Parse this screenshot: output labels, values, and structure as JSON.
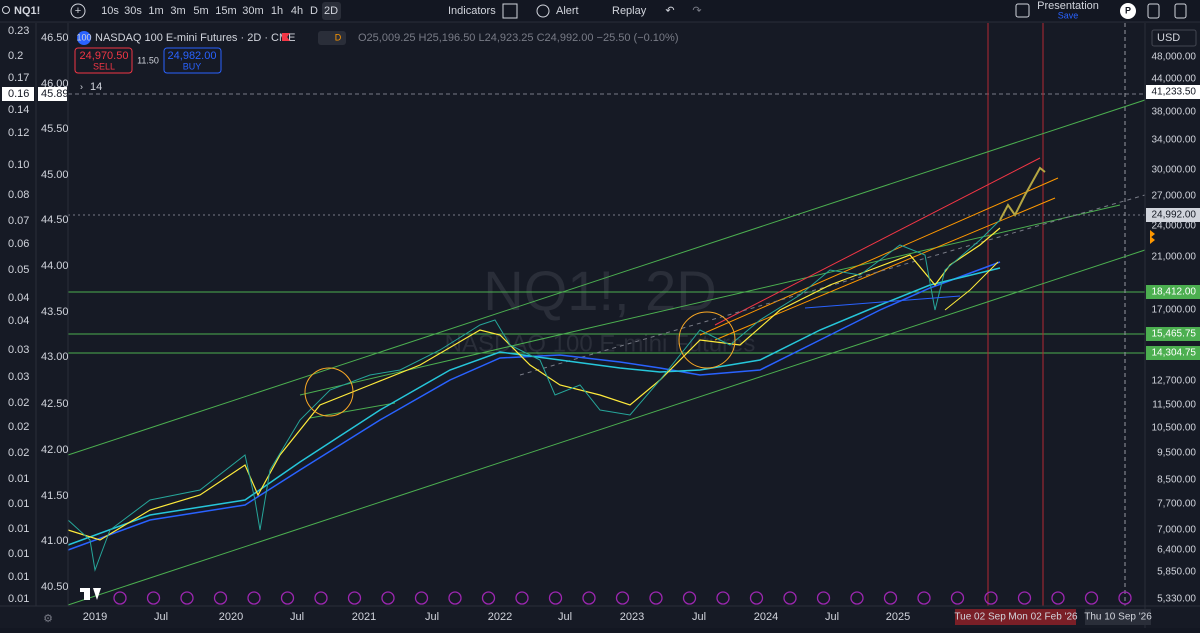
{
  "toolbar": {
    "symbol": "NQ1!",
    "intervals": [
      "10s",
      "30s",
      "1m",
      "3m",
      "5m",
      "15m",
      "30m",
      "1h",
      "4h",
      "D",
      "2D"
    ],
    "indicators": "Indicators",
    "alert": "Alert",
    "replay": "Replay",
    "presentation": "Presentation",
    "save": "Save",
    "avatar": "P"
  },
  "legend": {
    "logo": "100",
    "title": "NASDAQ 100 E-mini Futures · 2D · CME",
    "badge": "D",
    "ohlc": "O25,009.25 H25,196.50 L24,923.25 C24,992.00 −25.50 (−0.10%)",
    "sell_price": "24,970.50",
    "sell": "SELL",
    "spread": "11.50",
    "buy_price": "24,982.00",
    "buy": "BUY",
    "indicator_count": "14"
  },
  "watermark": {
    "symbol": "NQ1!, 2D",
    "name": "NASDAQ 100 E-mini Futures"
  },
  "left_scale_1": [
    "0.23",
    "0.2",
    "0.17",
    "0.16",
    "0.14",
    "0.12",
    "0.10",
    "0.08",
    "0.07",
    "0.06",
    "0.05",
    "0.04",
    "0.04",
    "0.03",
    "0.03",
    "0.02",
    "0.02",
    "0.02",
    "0.01",
    "0.01",
    "0.01",
    "0.01",
    "0.01",
    "0.01"
  ],
  "left_scale_2": [
    "46.50",
    "46.00",
    "45.89",
    "45.50",
    "45.00",
    "44.50",
    "44.00",
    "43.50",
    "43.00",
    "42.50",
    "42.00",
    "41.50",
    "41.00",
    "40.50"
  ],
  "right_scale": {
    "currency": "USD",
    "labels": [
      "48,000.00",
      "44,000.00",
      "41,233.50",
      "38,000.00",
      "34,000.00",
      "30,000.00",
      "27,000.00",
      "24,992.00",
      "24,000.00",
      "21,000.00",
      "18,412.00",
      "17,000.00",
      "15,465.75",
      "14,304.75",
      "12,700.00",
      "11,500.00",
      "10,500.00",
      "9,500.00",
      "8,500.00",
      "7,700.00",
      "7,000.00",
      "6,400.00",
      "5,850.00",
      "5,330.00"
    ]
  },
  "time_axis": {
    "labels": [
      "2019",
      "Jul",
      "2020",
      "Jul",
      "2021",
      "Jul",
      "2022",
      "Jul",
      "2023",
      "Jul",
      "2024",
      "Jul",
      "2025"
    ],
    "markers": [
      "Tue 02 Sep '25",
      "Mon 02 Feb '26",
      "Thu 10 Sep '26"
    ]
  }
}
